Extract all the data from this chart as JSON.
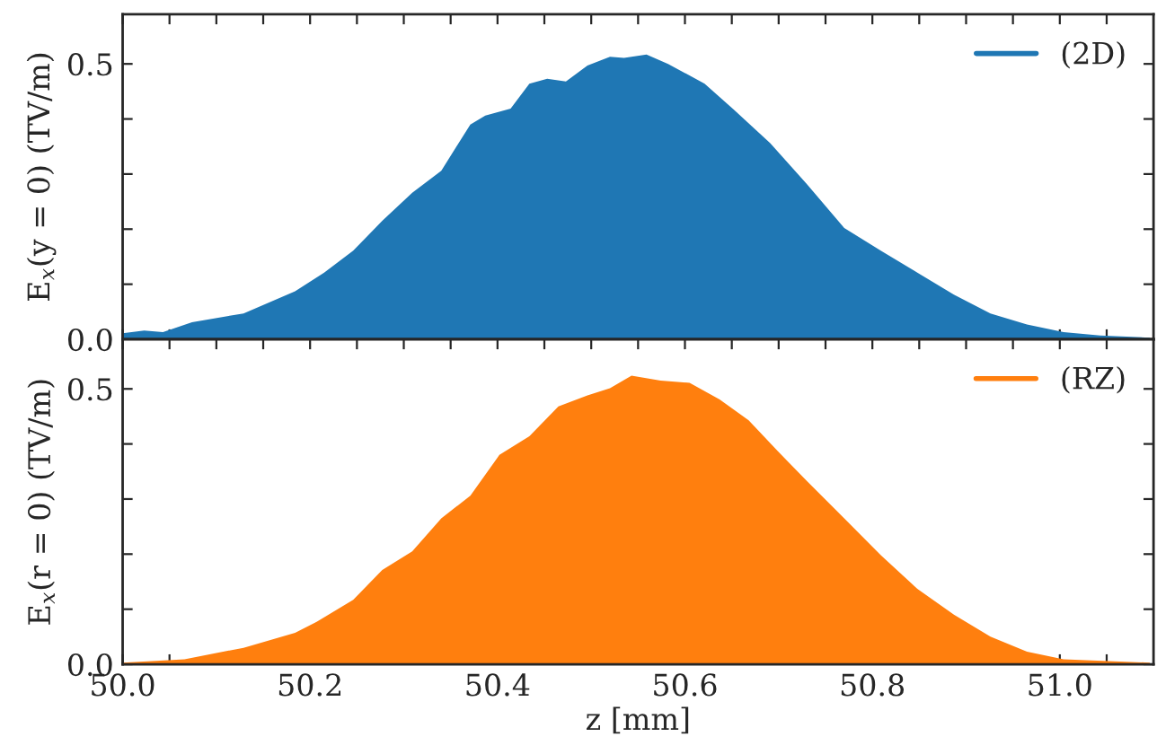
{
  "chart_data": [
    {
      "type": "area",
      "ylabel": "E$_{x}$(y = 0) (TV/m)",
      "xlim": [
        50.0,
        51.1
      ],
      "ylim": [
        0,
        0.59
      ],
      "tick_labels": "y",
      "legend": "top right",
      "grid": false,
      "xticks": [
        {
          "value": 50.0,
          "label": null
        },
        {
          "value": 50.05,
          "label": null
        },
        {
          "value": 50.1,
          "label": null
        },
        {
          "value": 50.15,
          "label": null
        },
        {
          "value": 50.2,
          "label": null
        },
        {
          "value": 50.25,
          "label": null
        },
        {
          "value": 50.3,
          "label": null
        },
        {
          "value": 50.35,
          "label": null
        },
        {
          "value": 50.4,
          "label": null
        },
        {
          "value": 50.45,
          "label": null
        },
        {
          "value": 50.5,
          "label": null
        },
        {
          "value": 50.55,
          "label": null
        },
        {
          "value": 50.6,
          "label": null
        },
        {
          "value": 50.65,
          "label": null
        },
        {
          "value": 50.7,
          "label": null
        },
        {
          "value": 50.75,
          "label": null
        },
        {
          "value": 50.8,
          "label": null
        },
        {
          "value": 50.85,
          "label": null
        },
        {
          "value": 50.9,
          "label": null
        },
        {
          "value": 50.95,
          "label": null
        },
        {
          "value": 51.0,
          "label": null
        },
        {
          "value": 51.05,
          "label": null
        }
      ],
      "yticks": [
        {
          "value": 0.0,
          "label": "0.0"
        },
        {
          "value": 0.1,
          "label": null
        },
        {
          "value": 0.2,
          "label": null
        },
        {
          "value": 0.3,
          "label": null
        },
        {
          "value": 0.4,
          "label": null
        },
        {
          "value": 0.5,
          "label": "0.5"
        }
      ],
      "series": [
        {
          "name": "(2D)",
          "color": "#1f77b4",
          "x": [
            50.0,
            50.023,
            50.043,
            50.074,
            50.129,
            50.184,
            50.215,
            50.246,
            50.277,
            50.309,
            50.34,
            50.371,
            50.387,
            50.414,
            50.434,
            50.453,
            50.473,
            50.496,
            50.52,
            50.535,
            50.559,
            50.582,
            50.621,
            50.652,
            50.691,
            50.73,
            50.77,
            50.809,
            50.848,
            50.887,
            50.926,
            50.965,
            51.004,
            51.043,
            51.096
          ],
          "values": [
            0.011,
            0.016,
            0.013,
            0.031,
            0.047,
            0.087,
            0.121,
            0.161,
            0.215,
            0.266,
            0.306,
            0.39,
            0.406,
            0.419,
            0.464,
            0.473,
            0.468,
            0.497,
            0.513,
            0.511,
            0.517,
            0.5,
            0.464,
            0.417,
            0.356,
            0.282,
            0.202,
            0.161,
            0.121,
            0.081,
            0.047,
            0.027,
            0.013,
            0.007,
            0.003
          ]
        }
      ]
    },
    {
      "type": "area",
      "xlabel": "z [mm]",
      "ylabel": "E$_{x}$(r = 0) (TV/m)",
      "xlim": [
        50.0,
        51.1
      ],
      "ylim": [
        0,
        0.59
      ],
      "legend": "top right",
      "grid": false,
      "xticks": [
        {
          "value": 50.0,
          "label": "50.0"
        },
        {
          "value": 50.05,
          "label": null
        },
        {
          "value": 50.1,
          "label": null
        },
        {
          "value": 50.15,
          "label": null
        },
        {
          "value": 50.2,
          "label": "50.2"
        },
        {
          "value": 50.25,
          "label": null
        },
        {
          "value": 50.3,
          "label": null
        },
        {
          "value": 50.35,
          "label": null
        },
        {
          "value": 50.4,
          "label": "50.4"
        },
        {
          "value": 50.45,
          "label": null
        },
        {
          "value": 50.5,
          "label": null
        },
        {
          "value": 50.55,
          "label": null
        },
        {
          "value": 50.6,
          "label": "50.6"
        },
        {
          "value": 50.65,
          "label": null
        },
        {
          "value": 50.7,
          "label": null
        },
        {
          "value": 50.75,
          "label": null
        },
        {
          "value": 50.8,
          "label": "50.8"
        },
        {
          "value": 50.85,
          "label": null
        },
        {
          "value": 50.9,
          "label": null
        },
        {
          "value": 50.95,
          "label": null
        },
        {
          "value": 51.0,
          "label": "51.0"
        },
        {
          "value": 51.05,
          "label": null
        }
      ],
      "yticks": [
        {
          "value": 0.0,
          "label": "0.0"
        },
        {
          "value": 0.1,
          "label": null
        },
        {
          "value": 0.2,
          "label": null
        },
        {
          "value": 0.3,
          "label": null
        },
        {
          "value": 0.4,
          "label": null
        },
        {
          "value": 0.5,
          "label": "0.5"
        }
      ],
      "series": [
        {
          "name": "(RZ)",
          "color": "#ff7f0e",
          "x": [
            50.0,
            50.066,
            50.129,
            50.184,
            50.207,
            50.246,
            50.277,
            50.309,
            50.34,
            50.371,
            50.402,
            50.434,
            50.465,
            50.496,
            50.52,
            50.543,
            50.574,
            50.605,
            50.637,
            50.668,
            50.699,
            50.73,
            50.77,
            50.809,
            50.848,
            50.887,
            50.926,
            50.965,
            51.004,
            51.096
          ],
          "values": [
            0.003,
            0.009,
            0.03,
            0.057,
            0.077,
            0.117,
            0.171,
            0.205,
            0.265,
            0.306,
            0.38,
            0.414,
            0.468,
            0.488,
            0.501,
            0.524,
            0.515,
            0.511,
            0.481,
            0.443,
            0.387,
            0.333,
            0.265,
            0.198,
            0.137,
            0.09,
            0.05,
            0.023,
            0.009,
            0.003
          ]
        }
      ]
    }
  ]
}
